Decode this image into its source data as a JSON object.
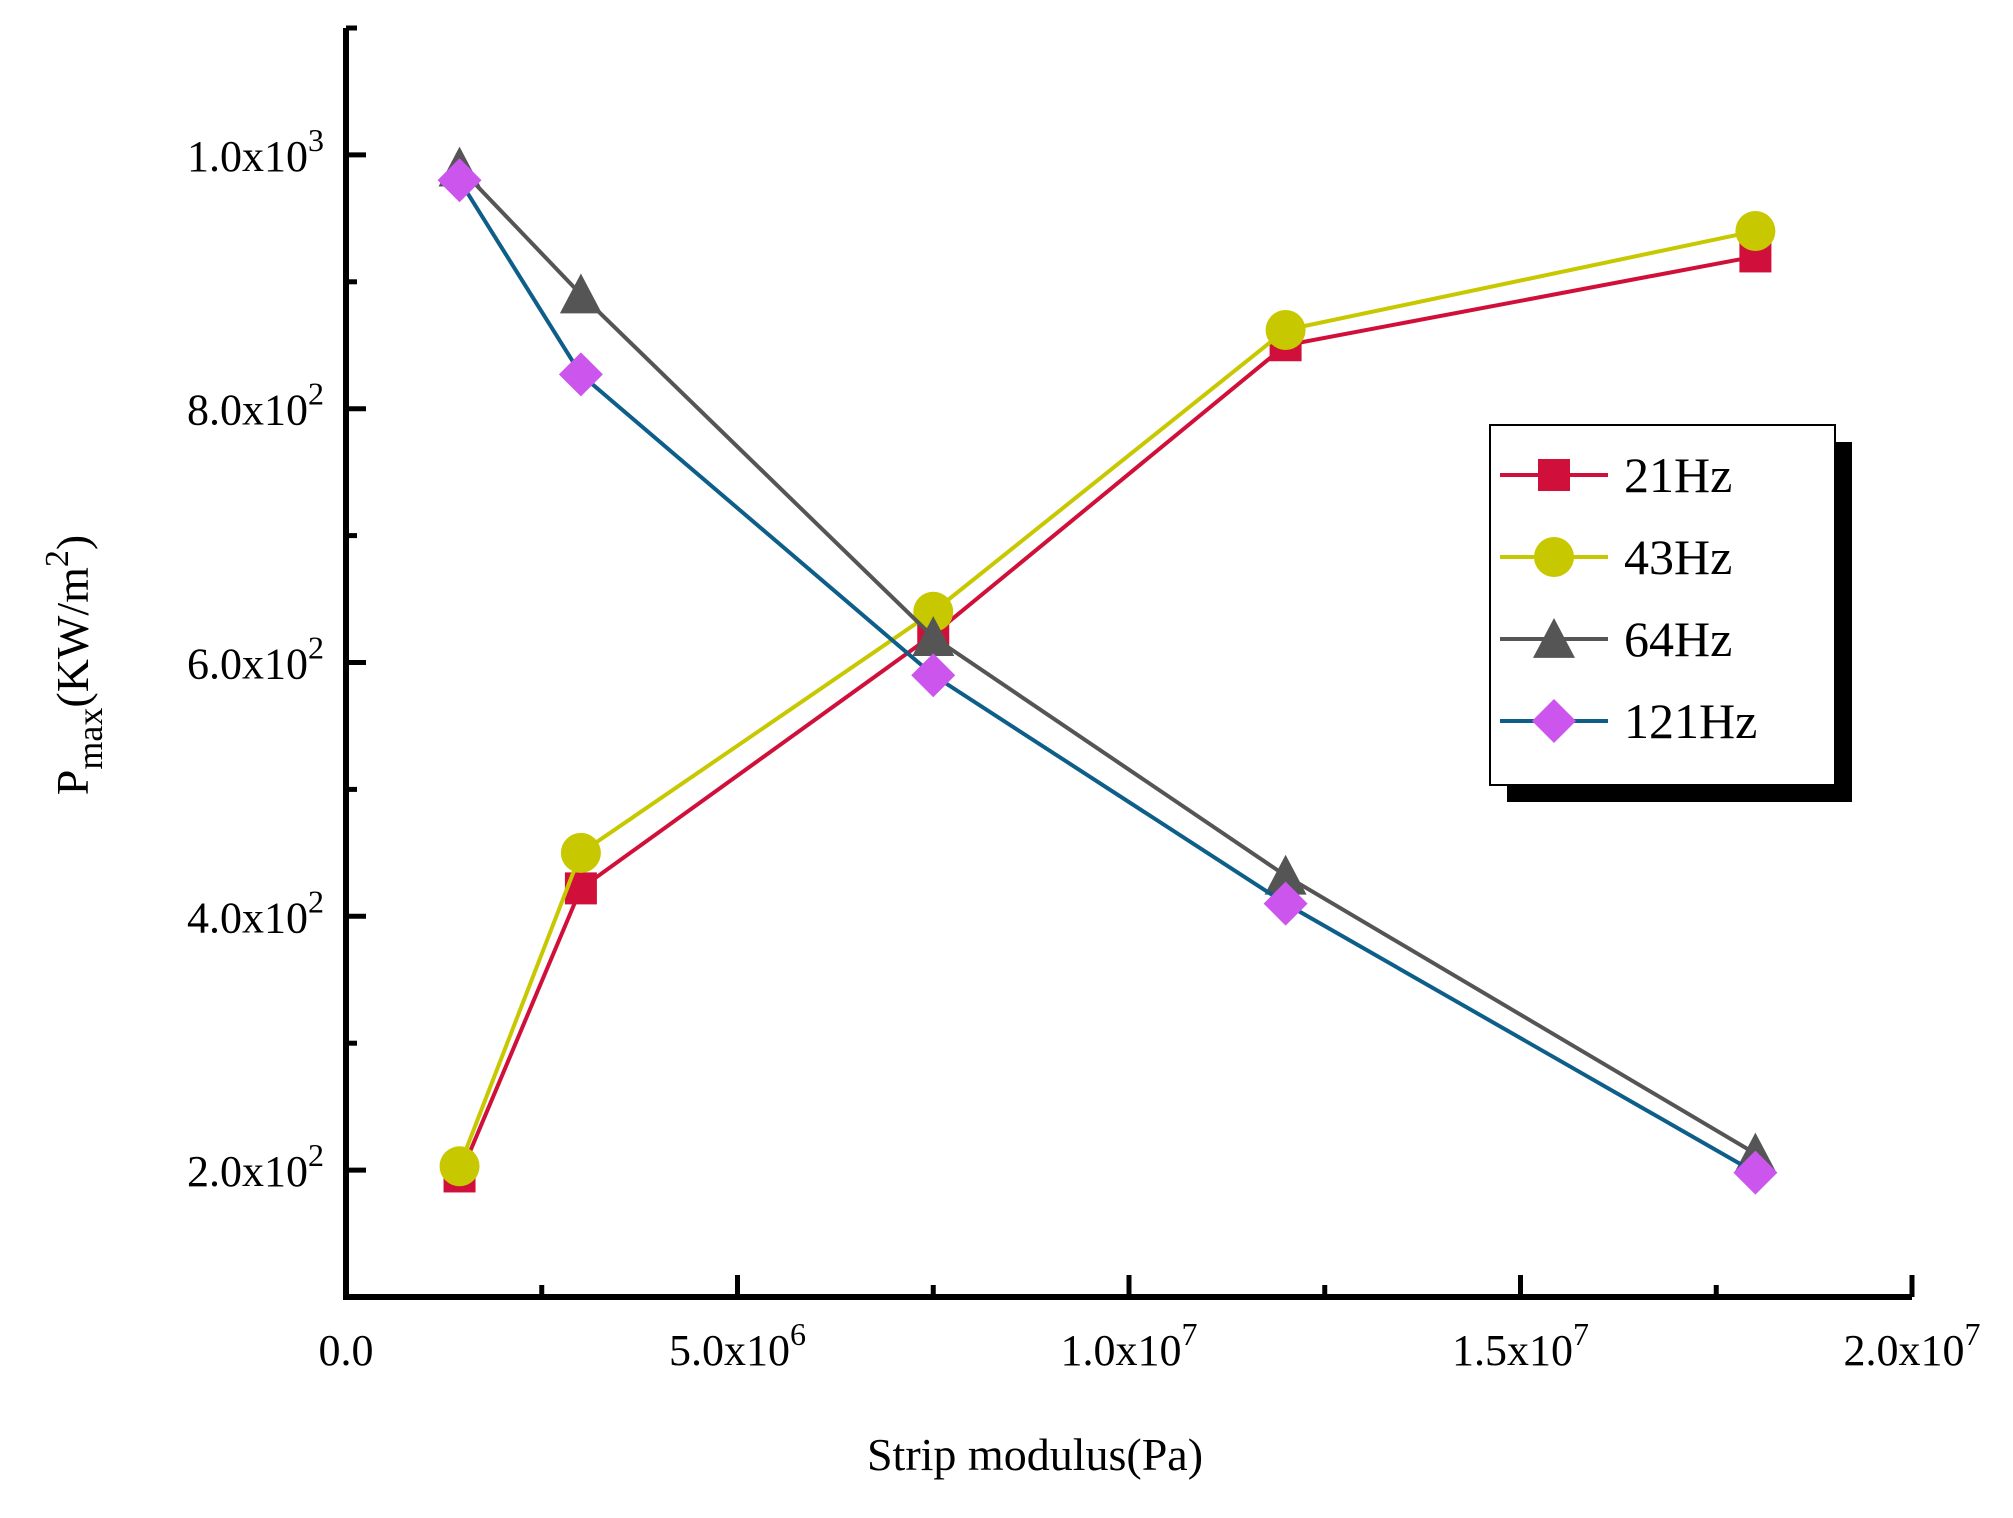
{
  "chart_data": {
    "type": "line",
    "title": "",
    "xlabel": "Strip modulus(Pa)",
    "ylabel": {
      "base": "P",
      "subscript": "max",
      "unit_pre": "(KW/m",
      "unit_sup": "2",
      "unit_post": ")"
    },
    "xlim": [
      0,
      20000000
    ],
    "ylim": [
      100,
      1100
    ],
    "x_ticks": [
      {
        "value": 0,
        "mantissa": "0.0",
        "exp": ""
      },
      {
        "value": 5000000,
        "mantissa": "5.0x10",
        "exp": "6"
      },
      {
        "value": 10000000,
        "mantissa": "1.0x10",
        "exp": "7"
      },
      {
        "value": 15000000,
        "mantissa": "1.5x10",
        "exp": "7"
      },
      {
        "value": 20000000,
        "mantissa": "2.0x10",
        "exp": "7"
      }
    ],
    "y_ticks": [
      {
        "value": 200,
        "mantissa": "2.0x10",
        "exp": "2"
      },
      {
        "value": 400,
        "mantissa": "4.0x10",
        "exp": "2"
      },
      {
        "value": 600,
        "mantissa": "6.0x10",
        "exp": "2"
      },
      {
        "value": 800,
        "mantissa": "8.0x10",
        "exp": "2"
      },
      {
        "value": 1000,
        "mantissa": "1.0x10",
        "exp": "3"
      }
    ],
    "legend_position": "right",
    "series": [
      {
        "name": "21Hz",
        "color": "#d0103a",
        "marker": "square",
        "x": [
          1450000,
          3000000,
          7500000,
          12000000,
          18000000
        ],
        "y": [
          195,
          422,
          622,
          850,
          920
        ]
      },
      {
        "name": "43Hz",
        "color": "#c8c800",
        "marker": "circle",
        "x": [
          1450000,
          3000000,
          7500000,
          12000000,
          18000000
        ],
        "y": [
          203,
          450,
          640,
          862,
          940
        ]
      },
      {
        "name": "64Hz",
        "color": "#555555",
        "marker": "triangle",
        "x": [
          1450000,
          3000000,
          7500000,
          12000000,
          18000000
        ],
        "y": [
          990,
          890,
          620,
          432,
          213
        ]
      },
      {
        "name": "121Hz",
        "color": "#0e5e8a",
        "marker": "diamond",
        "x": [
          1450000,
          3000000,
          7500000,
          12000000,
          18000000
        ],
        "y": [
          980,
          827,
          590,
          410,
          198
        ]
      }
    ]
  },
  "colors": {
    "axis": "#000000",
    "marker_121": "#cc55ee"
  }
}
